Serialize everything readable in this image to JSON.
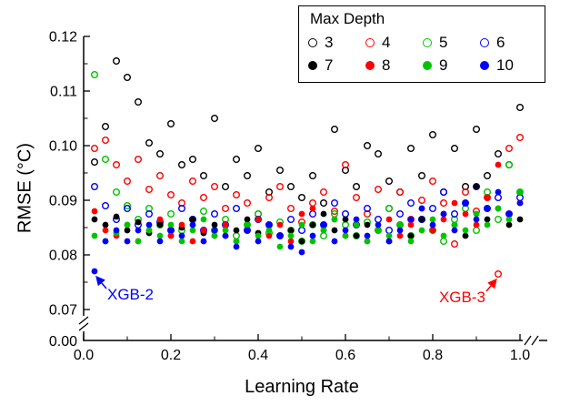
{
  "chart_data": {
    "type": "scatter",
    "title": "",
    "xlabel": "Learning Rate",
    "ylabel": "RMSE (°C)",
    "xlim": [
      0,
      1
    ],
    "ylim": [
      0.07,
      0.12
    ],
    "grid": false,
    "legend_title": "Max Depth",
    "legend_position": "top-right",
    "axis_break_label": "0.00",
    "x_ticks": {
      "values": [
        0,
        0.2,
        0.4,
        0.6,
        0.8,
        1
      ],
      "labels": [
        "0.0",
        "0.2",
        "0.4",
        "0.6",
        "0.8",
        "1.0"
      ],
      "minor": [
        0.1,
        0.3,
        0.5,
        0.7,
        0.9
      ]
    },
    "y_ticks": {
      "values": [
        0.07,
        0.08,
        0.09,
        0.1,
        0.11,
        0.12
      ],
      "labels": [
        "0.07",
        "0.08",
        "0.09",
        "0.10",
        "0.11",
        "0.12"
      ],
      "minor": [
        0.075,
        0.085,
        0.095,
        0.105,
        0.115
      ]
    },
    "x": [
      0.025,
      0.05,
      0.075,
      0.1,
      0.125,
      0.15,
      0.175,
      0.2,
      0.225,
      0.25,
      0.275,
      0.3,
      0.325,
      0.35,
      0.375,
      0.4,
      0.425,
      0.45,
      0.475,
      0.5,
      0.525,
      0.55,
      0.575,
      0.6,
      0.625,
      0.65,
      0.675,
      0.7,
      0.725,
      0.75,
      0.775,
      0.8,
      0.825,
      0.85,
      0.875,
      0.9,
      0.925,
      0.95,
      0.975,
      1.0
    ],
    "series": [
      {
        "name": "3",
        "color": "#000000",
        "filled": false,
        "values": [
          0.097,
          0.1035,
          0.1155,
          0.1125,
          0.108,
          0.1005,
          0.0985,
          0.104,
          0.0965,
          0.0975,
          0.0945,
          0.105,
          0.0925,
          0.0975,
          0.0945,
          0.0995,
          0.0915,
          0.0955,
          0.0925,
          0.0905,
          0.0945,
          0.0895,
          0.103,
          0.0955,
          0.0925,
          0.1,
          0.0985,
          0.0935,
          0.0915,
          0.0995,
          0.0945,
          0.102,
          0.0915,
          0.0995,
          0.0925,
          0.103,
          0.0945,
          0.0985,
          0.0965,
          0.107
        ]
      },
      {
        "name": "4",
        "color": "#ff0000",
        "filled": false,
        "values": [
          0.0995,
          0.101,
          0.0965,
          0.0935,
          0.0975,
          0.092,
          0.0945,
          0.091,
          0.0895,
          0.0935,
          0.0905,
          0.0925,
          0.0885,
          0.091,
          0.0895,
          0.0875,
          0.0905,
          0.0925,
          0.0885,
          0.086,
          0.0895,
          0.0915,
          0.088,
          0.0965,
          0.0905,
          0.0875,
          0.092,
          0.0885,
          0.0915,
          0.0865,
          0.09,
          0.0935,
          0.0895,
          0.082,
          0.0915,
          0.088,
          0.0905,
          0.0765,
          0.0995,
          0.1015
        ]
      },
      {
        "name": "5",
        "color": "#00c400",
        "filled": false,
        "values": [
          0.113,
          0.0975,
          0.0915,
          0.089,
          0.0865,
          0.0885,
          0.0855,
          0.0875,
          0.0845,
          0.0865,
          0.088,
          0.0845,
          0.0865,
          0.0835,
          0.0855,
          0.0875,
          0.084,
          0.086,
          0.0845,
          0.0825,
          0.0855,
          0.0835,
          0.0875,
          0.0855,
          0.0835,
          0.086,
          0.0845,
          0.0885,
          0.0855,
          0.0835,
          0.0865,
          0.0845,
          0.0825,
          0.0865,
          0.0885,
          0.0845,
          0.0915,
          0.0865,
          0.0965,
          0.0915
        ]
      },
      {
        "name": "6",
        "color": "#0000ff",
        "filled": false,
        "values": [
          0.0925,
          0.089,
          0.0865,
          0.0885,
          0.0855,
          0.0875,
          0.086,
          0.0845,
          0.0885,
          0.0865,
          0.0845,
          0.0875,
          0.0855,
          0.0885,
          0.0845,
          0.0865,
          0.0855,
          0.0835,
          0.0865,
          0.0845,
          0.0875,
          0.0855,
          0.0895,
          0.0875,
          0.0855,
          0.0885,
          0.0865,
          0.0845,
          0.0875,
          0.0895,
          0.0865,
          0.0885,
          0.0915,
          0.0875,
          0.0895,
          0.0925,
          0.0885,
          0.0905,
          0.0875,
          0.0905
        ]
      },
      {
        "name": "7",
        "color": "#000000",
        "filled": true,
        "values": [
          0.0865,
          0.0855,
          0.087,
          0.0845,
          0.086,
          0.084,
          0.0855,
          0.0835,
          0.085,
          0.0865,
          0.084,
          0.0855,
          0.0835,
          0.0845,
          0.0865,
          0.084,
          0.0855,
          0.0835,
          0.0845,
          0.0825,
          0.0855,
          0.0875,
          0.0845,
          0.0865,
          0.0835,
          0.0855,
          0.0845,
          0.0825,
          0.0855,
          0.0835,
          0.0865,
          0.0845,
          0.0875,
          0.0855,
          0.0835,
          0.0925,
          0.0865,
          0.0885,
          0.0855,
          0.0865
        ]
      },
      {
        "name": "8",
        "color": "#ff0000",
        "filled": true,
        "values": [
          0.088,
          0.0845,
          0.0835,
          0.0855,
          0.0825,
          0.0845,
          0.0865,
          0.0835,
          0.0855,
          0.0825,
          0.0845,
          0.0835,
          0.0855,
          0.0825,
          0.0845,
          0.0865,
          0.0835,
          0.0855,
          0.0825,
          0.0875,
          0.0885,
          0.0845,
          0.0865,
          0.0835,
          0.0855,
          0.0825,
          0.0845,
          0.0865,
          0.0835,
          0.0855,
          0.0885,
          0.0845,
          0.0865,
          0.0895,
          0.0875,
          0.0855,
          0.0905,
          0.0965,
          0.0875,
          0.0895
        ]
      },
      {
        "name": "9",
        "color": "#00c400",
        "filled": true,
        "values": [
          0.0835,
          0.0825,
          0.084,
          0.0855,
          0.0825,
          0.0845,
          0.0835,
          0.0855,
          0.0825,
          0.0845,
          0.0865,
          0.0835,
          0.0845,
          0.0825,
          0.0855,
          0.0835,
          0.0845,
          0.0815,
          0.0835,
          0.0855,
          0.0825,
          0.0845,
          0.0865,
          0.0835,
          0.0855,
          0.0825,
          0.0845,
          0.0835,
          0.0855,
          0.0825,
          0.0845,
          0.0865,
          0.0835,
          0.0855,
          0.0845,
          0.0875,
          0.0855,
          0.0885,
          0.0865,
          0.0915
        ]
      },
      {
        "name": "10",
        "color": "#0000ff",
        "filled": true,
        "values": [
          0.077,
          0.0825,
          0.0845,
          0.0825,
          0.0845,
          0.0855,
          0.0825,
          0.0845,
          0.0835,
          0.0855,
          0.0825,
          0.0845,
          0.0835,
          0.0815,
          0.0845,
          0.0825,
          0.0855,
          0.0835,
          0.0815,
          0.0805,
          0.0835,
          0.0855,
          0.0825,
          0.0845,
          0.0865,
          0.0835,
          0.0855,
          0.0825,
          0.0845,
          0.0865,
          0.0885,
          0.0855,
          0.0875,
          0.0845,
          0.0895,
          0.0865,
          0.0885,
          0.0915,
          0.0875,
          0.0895
        ]
      }
    ],
    "annotations": [
      {
        "text": "XGB-2",
        "color": "#0000ff",
        "x": 0.025,
        "y": 0.077,
        "side": "right"
      },
      {
        "text": "XGB-3",
        "color": "#ff0000",
        "x": 0.95,
        "y": 0.0765,
        "side": "left"
      }
    ]
  }
}
